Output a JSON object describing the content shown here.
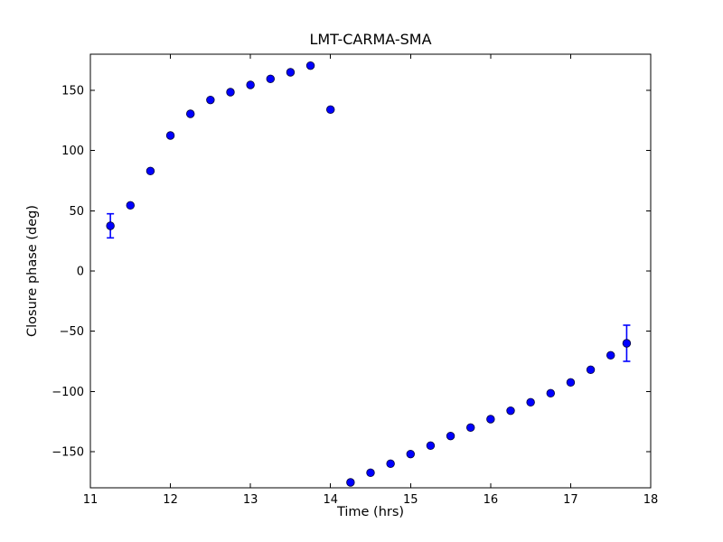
{
  "chart_data": {
    "type": "scatter",
    "title": "LMT-CARMA-SMA",
    "xlabel": "Time (hrs)",
    "ylabel": "Closure phase (deg)",
    "xlim": [
      11,
      18
    ],
    "ylim": [
      -180,
      180
    ],
    "xticks": [
      11,
      12,
      13,
      14,
      15,
      16,
      17,
      18
    ],
    "yticks": [
      150,
      100,
      50,
      0,
      -50,
      -100,
      -150
    ],
    "grid": false,
    "legend_position": "none",
    "tick_direction": "in",
    "frame_color": "#000000",
    "marker_color": "#0000ff",
    "marker_edge_color": "#000033",
    "errorbar_color": "#0000ff",
    "series": [
      {
        "name": "closure-phase",
        "points": [
          {
            "x": 11.25,
            "y": 37.5,
            "yerr": 10
          },
          {
            "x": 11.5,
            "y": 54.5,
            "yerr": null
          },
          {
            "x": 11.75,
            "y": 83,
            "yerr": null
          },
          {
            "x": 12.0,
            "y": 112.5,
            "yerr": null
          },
          {
            "x": 12.25,
            "y": 130.5,
            "yerr": null
          },
          {
            "x": 12.5,
            "y": 142,
            "yerr": null
          },
          {
            "x": 12.75,
            "y": 148.5,
            "yerr": null
          },
          {
            "x": 13.0,
            "y": 154.5,
            "yerr": null
          },
          {
            "x": 13.25,
            "y": 159.5,
            "yerr": null
          },
          {
            "x": 13.5,
            "y": 165,
            "yerr": null
          },
          {
            "x": 13.75,
            "y": 170.5,
            "yerr": null
          },
          {
            "x": 14.0,
            "y": 134,
            "yerr": null
          },
          {
            "x": 14.25,
            "y": -175.5,
            "yerr": null
          },
          {
            "x": 14.5,
            "y": -167.5,
            "yerr": null
          },
          {
            "x": 14.75,
            "y": -160,
            "yerr": null
          },
          {
            "x": 15.0,
            "y": -152,
            "yerr": null
          },
          {
            "x": 15.25,
            "y": -145,
            "yerr": null
          },
          {
            "x": 15.5,
            "y": -137,
            "yerr": null
          },
          {
            "x": 15.75,
            "y": -130,
            "yerr": null
          },
          {
            "x": 16.0,
            "y": -123,
            "yerr": null
          },
          {
            "x": 16.25,
            "y": -116,
            "yerr": null
          },
          {
            "x": 16.5,
            "y": -109,
            "yerr": null
          },
          {
            "x": 16.75,
            "y": -101.5,
            "yerr": null
          },
          {
            "x": 17.0,
            "y": -92.5,
            "yerr": null
          },
          {
            "x": 17.25,
            "y": -82,
            "yerr": null
          },
          {
            "x": 17.5,
            "y": -70,
            "yerr": null
          },
          {
            "x": 17.7,
            "y": -60,
            "yerr": 15
          }
        ]
      }
    ]
  }
}
